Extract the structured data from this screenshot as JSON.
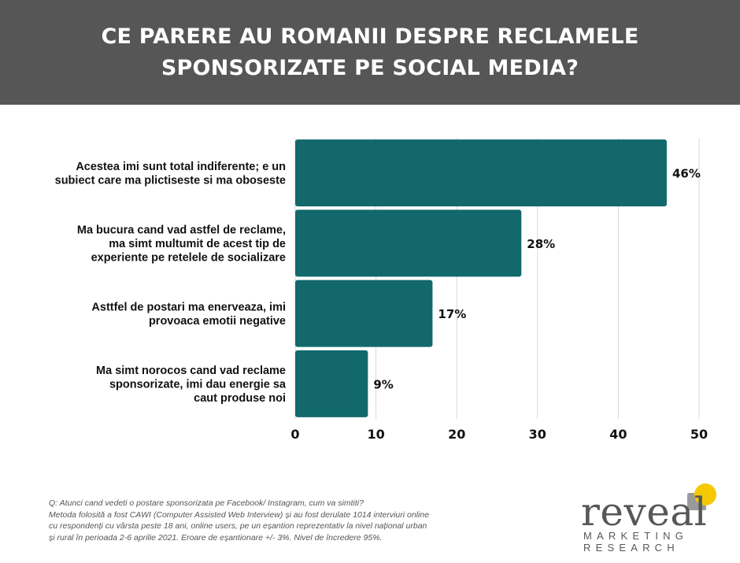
{
  "title": "CE PARERE AU ROMANII DESPRE RECLAMELE SPONSORIZATE PE SOCIAL MEDIA?",
  "chart_data": {
    "type": "bar",
    "orientation": "horizontal",
    "categories": [
      [
        "Acestea imi sunt total indiferente; e un",
        "subiect care ma plictiseste si ma oboseste"
      ],
      [
        "Ma bucura cand vad astfel de reclame,",
        "ma simt multumit de acest tip de",
        "experiente pe retelele de socializare"
      ],
      [
        "Asttfel de postari ma enerveaza, imi",
        "provoaca emotii negative"
      ],
      [
        "Ma simt norocos cand vad reclame",
        "sponsorizate, imi dau energie sa",
        "caut produse noi"
      ]
    ],
    "values": [
      46,
      28,
      17,
      9
    ],
    "value_labels": [
      "46%",
      "28%",
      "17%",
      "9%"
    ],
    "xlim": [
      0,
      50
    ],
    "xticks": [
      0,
      10,
      20,
      30,
      40,
      50
    ],
    "xlabel": "",
    "ylabel": "",
    "grid": "vertical",
    "bar_color": "#12686b"
  },
  "footnote": [
    "Q: Atunci cand vedeti o postare sponsorizata pe Facebook/ Instagram, cum va simtiti?",
    "Metoda folosită a fost CAWI (Computer Assisted Web Interview) și au fost derulate 1014 interviuri online",
    "cu respondenți cu vârsta peste 18 ani, online users, pe un eșantion reprezentativ la nivel național urban",
    "și rural în perioada 2-6 aprilie 2021. Eroare de eșantionare +/- 3%. Nivel de încredere 95%."
  ],
  "logo": {
    "word": "reveal",
    "line1": "MARKETING",
    "line2": "RESEARCH",
    "colors": {
      "text": "#575757",
      "yellow": "#f5c800",
      "grey": "#9a9a9a"
    }
  }
}
